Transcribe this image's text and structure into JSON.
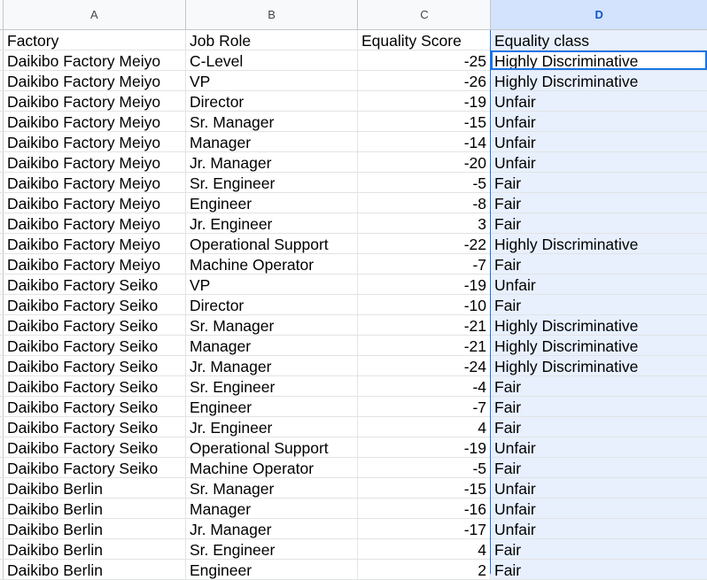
{
  "columns": [
    {
      "letter": "A"
    },
    {
      "letter": "B"
    },
    {
      "letter": "C"
    },
    {
      "letter": "D",
      "selected": true
    }
  ],
  "header_row": [
    "Factory",
    "Job Role",
    "Equality Score",
    "Equality class"
  ],
  "rows": [
    [
      "Daikibo Factory Meiyo",
      "C-Level",
      "-25",
      "Highly Discriminative"
    ],
    [
      "Daikibo Factory Meiyo",
      "VP",
      "-26",
      "Highly Discriminative"
    ],
    [
      "Daikibo Factory Meiyo",
      "Director",
      "-19",
      "Unfair"
    ],
    [
      "Daikibo Factory Meiyo",
      "Sr. Manager",
      "-15",
      "Unfair"
    ],
    [
      "Daikibo Factory Meiyo",
      "Manager",
      "-14",
      "Unfair"
    ],
    [
      "Daikibo Factory Meiyo",
      "Jr. Manager",
      "-20",
      "Unfair"
    ],
    [
      "Daikibo Factory Meiyo",
      "Sr. Engineer",
      "-5",
      "Fair"
    ],
    [
      "Daikibo Factory Meiyo",
      "Engineer",
      "-8",
      "Fair"
    ],
    [
      "Daikibo Factory Meiyo",
      "Jr. Engineer",
      "3",
      "Fair"
    ],
    [
      "Daikibo Factory Meiyo",
      "Operational Support",
      "-22",
      "Highly Discriminative"
    ],
    [
      "Daikibo Factory Meiyo",
      "Machine Operator",
      "-7",
      "Fair"
    ],
    [
      "Daikibo Factory Seiko",
      "VP",
      "-19",
      "Unfair"
    ],
    [
      "Daikibo Factory Seiko",
      "Director",
      "-10",
      "Fair"
    ],
    [
      "Daikibo Factory Seiko",
      "Sr. Manager",
      "-21",
      "Highly Discriminative"
    ],
    [
      "Daikibo Factory Seiko",
      "Manager",
      "-21",
      "Highly Discriminative"
    ],
    [
      "Daikibo Factory Seiko",
      "Jr. Manager",
      "-24",
      "Highly Discriminative"
    ],
    [
      "Daikibo Factory Seiko",
      "Sr. Engineer",
      "-4",
      "Fair"
    ],
    [
      "Daikibo Factory Seiko",
      "Engineer",
      "-7",
      "Fair"
    ],
    [
      "Daikibo Factory Seiko",
      "Jr. Engineer",
      "4",
      "Fair"
    ],
    [
      "Daikibo Factory Seiko",
      "Operational Support",
      "-19",
      "Unfair"
    ],
    [
      "Daikibo Factory Seiko",
      "Machine Operator",
      "-5",
      "Fair"
    ],
    [
      "Daikibo Berlin",
      "Sr. Manager",
      "-15",
      "Unfair"
    ],
    [
      "Daikibo Berlin",
      "Manager",
      "-16",
      "Unfair"
    ],
    [
      "Daikibo Berlin",
      "Jr. Manager",
      "-17",
      "Unfair"
    ],
    [
      "Daikibo Berlin",
      "Sr. Engineer",
      "4",
      "Fair"
    ],
    [
      "Daikibo Berlin",
      "Engineer",
      "2",
      "Fair"
    ]
  ],
  "active_cell": "D2",
  "colors": {
    "selection_fill": "#e8f0fe",
    "selection_border": "#1a73e8",
    "selected_header_bg": "#d3e3fd",
    "selected_header_text": "#0b57d0"
  }
}
